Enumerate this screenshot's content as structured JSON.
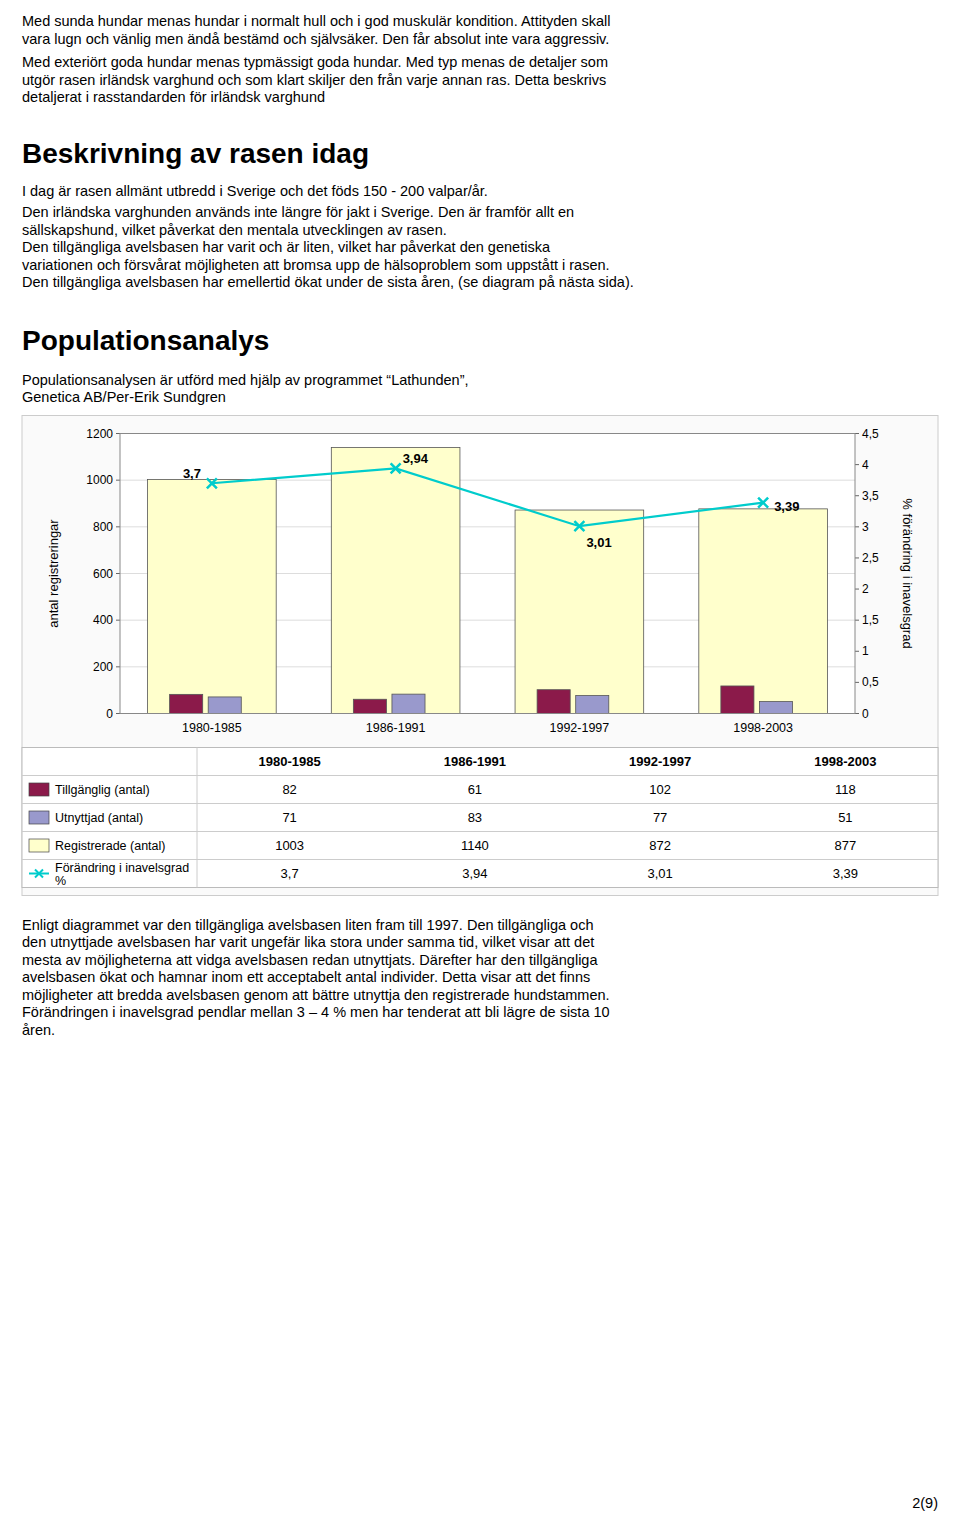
{
  "page": {
    "para1_lines": [
      "Med sunda hundar menas hundar i normalt hull och i god muskulär kondition. Attityden skall",
      "vara lugn och vänlig men ändå bestämd och självsäker. Den får absolut inte vara aggressiv."
    ],
    "para2_lines": [
      "Med exteriört goda hundar menas typmässigt goda hundar. Med typ menas de detaljer som",
      "utgör rasen irländsk varghund och som klart skiljer den från varje annan ras. Detta beskrivs",
      "detaljerat i rasstandarden för irländsk varghund"
    ],
    "heading1": "Beskrivning av rasen idag",
    "para_after_h1": "I dag är rasen allmänt utbredd i Sverige och det föds 150 - 200 valpar/år.",
    "para3_lines": [
      "Den irländska varghunden används inte längre för jakt i Sverige. Den är framför allt en",
      "sällskapshund, vilket påverkat den mentala utvecklingen av rasen."
    ],
    "para4_lines": [
      "Den tillgängliga avelsbasen har varit och är liten, vilket har påverkat den genetiska",
      "variationen och försvårat möjligheten att bromsa upp de hälsoproblem som uppstått i rasen."
    ],
    "para5_lines": [
      "Den tillgängliga avelsbasen har emellertid ökat under de sista åren, (se diagram på nästa sida)."
    ],
    "heading2": "Populationsanalys",
    "pop_sub_lines": [
      "Populationsanalysen är utförd med hjälp av programmet “Lathunden”,",
      "Genetica AB/Per-Erik Sundgren"
    ],
    "closing_lines": [
      "Enligt diagrammet var den tillgängliga avelsbasen liten fram till 1997. Den tillgängliga och",
      "den utnyttjade avelsbasen har varit ungefär lika stora under samma tid, vilket visar att det",
      "mesta av möjligheterna att vidga avelsbasen redan utnyttjats. Därefter har den tillgängliga",
      "avelsbasen ökat och hamnar inom ett acceptabelt antal individer. Detta visar att det finns",
      "möjligheter att bredda avelsbasen genom att bättre utnyttja den registrerade hundstammen.",
      "Förändringen i inavelsgrad pendlar mellan 3 – 4 % men har tenderat att bli lägre de sista 10",
      "åren."
    ],
    "page_number": "2(9)"
  },
  "chart_data": {
    "type": "bar",
    "categories": [
      "1980-1985",
      "1986-1991",
      "1992-1997",
      "1998-2003"
    ],
    "series": [
      {
        "name": "Tillgänglig  (antal)",
        "type": "bar",
        "color": "#8B1A4A",
        "values": [
          82,
          61,
          102,
          118
        ]
      },
      {
        "name": "Utnyttjad  (antal)",
        "type": "bar",
        "color": "#9999CC",
        "values": [
          71,
          83,
          77,
          51
        ]
      },
      {
        "name": "Registrerade  (antal)",
        "type": "bar",
        "color": "#FFFFCC",
        "values": [
          1003,
          1140,
          872,
          877
        ]
      },
      {
        "name": "Förändring i inavelsgrad\n%",
        "type": "line",
        "axis": "y2",
        "color": "#00CCCC",
        "marker": "x",
        "data_labels": true,
        "values": [
          3.7,
          3.94,
          3.01,
          3.39
        ],
        "value_labels": [
          "3,7",
          "3,94",
          "3,01",
          "3,39"
        ]
      }
    ],
    "ylabel": "antal registreringar",
    "y2label": "% förändring i inavelsgrad",
    "ylim": [
      0,
      1200
    ],
    "yticks": [
      0,
      200,
      400,
      600,
      800,
      1000,
      1200
    ],
    "y2lim": [
      0,
      4.5
    ],
    "y2ticks": [
      0,
      {
        "value": 0.5,
        "label": "0,5"
      },
      1,
      {
        "value": 1.5,
        "label": "1,5"
      },
      2,
      {
        "value": 2.5,
        "label": "2,5"
      },
      3,
      {
        "value": 3.5,
        "label": "3,5"
      },
      4,
      {
        "value": 4.5,
        "label": "4,5"
      }
    ],
    "grid": true,
    "legend": "bottom"
  }
}
